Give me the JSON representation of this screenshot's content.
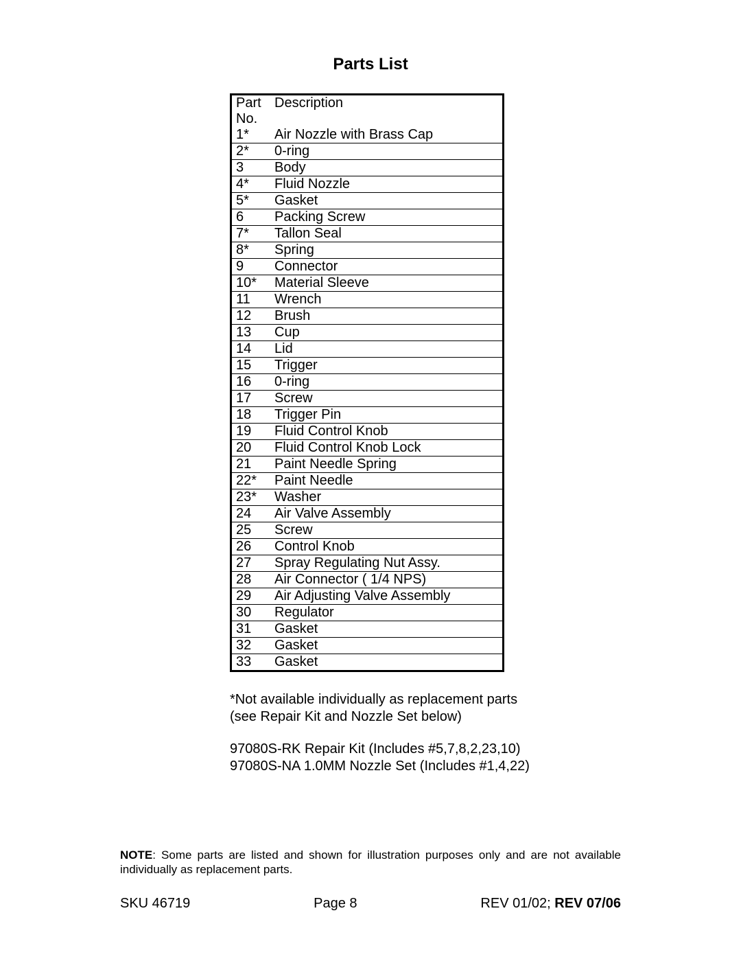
{
  "title": "Parts List",
  "table": {
    "header": {
      "partno": "Part No.",
      "description": "Description"
    },
    "rows": [
      {
        "partno": "1*",
        "description": "Air Nozzle with Brass Cap"
      },
      {
        "partno": "2*",
        "description": "0-ring"
      },
      {
        "partno": "3",
        "description": "Body"
      },
      {
        "partno": "4*",
        "description": "Fluid Nozzle"
      },
      {
        "partno": "5*",
        "description": "Gasket"
      },
      {
        "partno": "6",
        "description": "Packing Screw"
      },
      {
        "partno": "7*",
        "description": " Tallon Seal"
      },
      {
        "partno": "8*",
        "description": "Spring"
      },
      {
        "partno": "9",
        "description": "Connector"
      },
      {
        "partno": "10*",
        "description": "Material Sleeve"
      },
      {
        "partno": "11",
        "description": "Wrench"
      },
      {
        "partno": "12",
        "description": "Brush"
      },
      {
        "partno": "13",
        "description": "Cup"
      },
      {
        "partno": "14",
        "description": "Lid"
      },
      {
        "partno": "15",
        "description": " Trigger"
      },
      {
        "partno": "16",
        "description": "0-ring"
      },
      {
        "partno": "17",
        "description": "Screw"
      },
      {
        "partno": "18",
        "description": " Trigger Pin"
      },
      {
        "partno": "19",
        "description": "Fluid Control Knob"
      },
      {
        "partno": "20",
        "description": "Fluid Control Knob Lock"
      },
      {
        "partno": "21",
        "description": "Paint Needle Spring"
      },
      {
        "partno": "22*",
        "description": "Paint Needle"
      },
      {
        "partno": "23*",
        "description": "Washer"
      },
      {
        "partno": "24",
        "description": "Air Valve Assembly"
      },
      {
        "partno": "25",
        "description": "Screw"
      },
      {
        "partno": "26",
        "description": "Control Knob"
      },
      {
        "partno": "27",
        "description": "Spray Regulating Nut Assy."
      },
      {
        "partno": "28",
        "description": "Air Connector ( 1/4 NPS)"
      },
      {
        "partno": "29",
        "description": "Air Adjusting Valve Assembly"
      },
      {
        "partno": "30",
        "description": "Regulator"
      },
      {
        "partno": "31",
        "description": "Gasket"
      },
      {
        "partno": "32",
        "description": "Gasket"
      },
      {
        "partno": "33",
        "description": "Gasket"
      }
    ]
  },
  "notes": {
    "asterisk_line1": "*Not available individually as replacement parts",
    "asterisk_line2": "(see Repair Kit and Nozzle Set below)",
    "kit_line1": "97080S-RK Repair Kit (Includes #5,7,8,2,23,10)",
    "kit_line2": "97080S-NA 1.0MM Nozzle Set (Includes #1,4,22)"
  },
  "footnote": {
    "lead": "NOTE",
    "text": ": Some parts are listed and shown for illustration purposes only and are not available individually as replacement parts."
  },
  "footer": {
    "sku": "SKU 46719",
    "page": "Page 8",
    "rev_prefix": "REV 01/02; ",
    "rev_bold": "REV 07/06"
  }
}
